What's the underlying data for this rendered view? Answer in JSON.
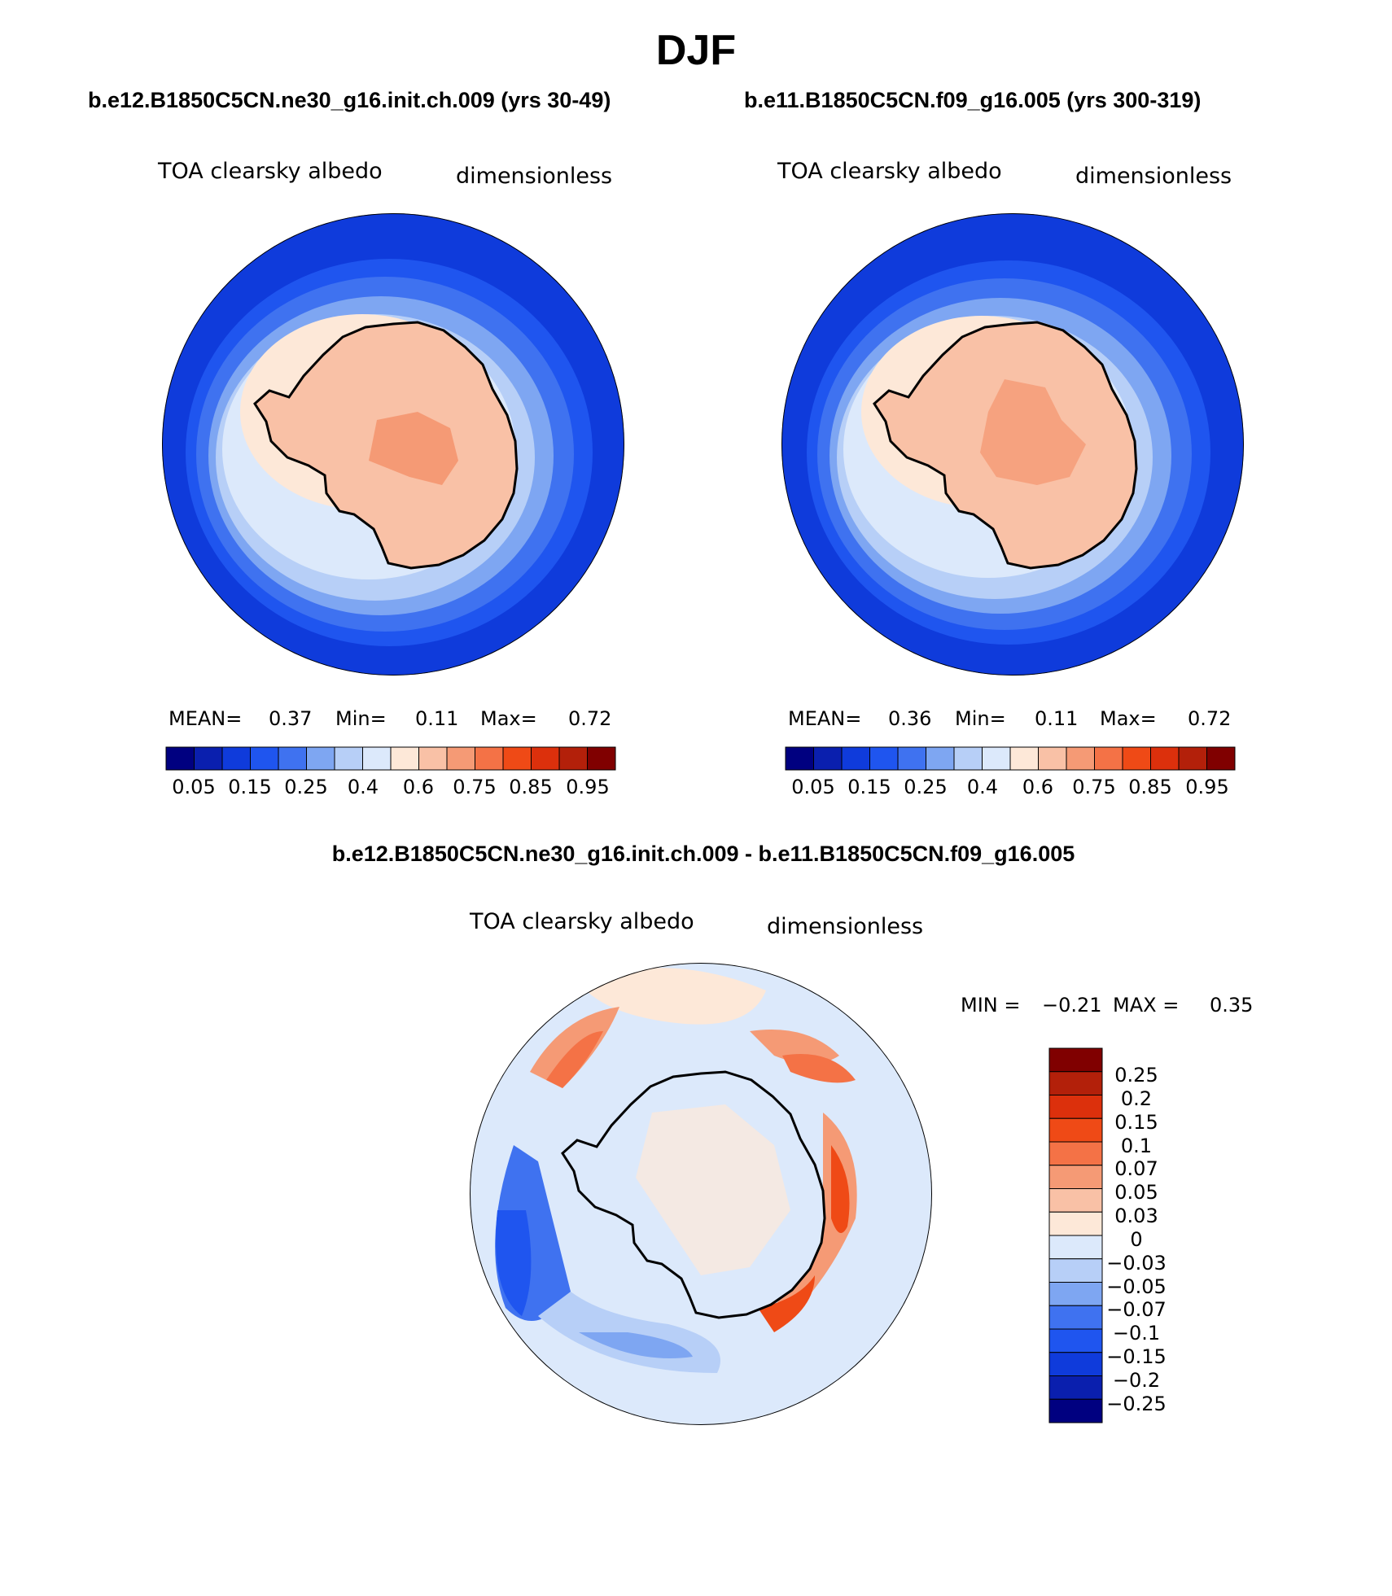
{
  "title": "DJF",
  "panels": [
    {
      "case_title": "b.e12.B1850C5CN.ne30_g16.init.ch.009 (yrs 30-49)",
      "variable": "TOA clearsky albedo",
      "units": "dimensionless",
      "mean_label": "MEAN=",
      "mean_value": "0.37",
      "min_label": "Min=",
      "min_value": "0.11",
      "max_label": "Max=",
      "max_value": "0.72",
      "colorbar_labels": [
        "0.05",
        "0.15",
        "0.25",
        "0.4",
        "0.6",
        "0.75",
        "0.85",
        "0.95"
      ]
    },
    {
      "case_title": "b.e11.B1850C5CN.f09_g16.005 (yrs 300-319)",
      "variable": "TOA clearsky albedo",
      "units": "dimensionless",
      "mean_label": "MEAN=",
      "mean_value": "0.36",
      "min_label": "Min=",
      "min_value": "0.11",
      "max_label": "Max=",
      "max_value": "0.72",
      "colorbar_labels": [
        "0.05",
        "0.15",
        "0.25",
        "0.4",
        "0.6",
        "0.75",
        "0.85",
        "0.95"
      ]
    }
  ],
  "difference": {
    "title": "b.e12.B1850C5CN.ne30_g16.init.ch.009 - b.e11.B1850C5CN.f09_g16.005",
    "variable": "TOA clearsky albedo",
    "units": "dimensionless",
    "min_label": "MIN =",
    "min_value": "−0.21",
    "max_label": "MAX =",
    "max_value": "0.35",
    "colorbar_labels": [
      "0.25",
      "0.2",
      "0.15",
      "0.1",
      "0.07",
      "0.05",
      "0.03",
      "0",
      "−0.03",
      "−0.05",
      "−0.07",
      "−0.1",
      "−0.15",
      "−0.2",
      "−0.25"
    ]
  },
  "colors": {
    "albedo_scale": [
      "#000080",
      "#0a1fae",
      "#0f3bdb",
      "#1f55ef",
      "#3f72f0",
      "#7ea6f2",
      "#b7cff7",
      "#dce9fb",
      "#fde8d8",
      "#f9c1a6",
      "#f59a75",
      "#f47246",
      "#ef4a16",
      "#dc300c",
      "#b3200a",
      "#800000"
    ],
    "diff_scale": [
      "#800000",
      "#b3200a",
      "#dc300c",
      "#ef4a16",
      "#f47246",
      "#f59a75",
      "#f9c1a6",
      "#fde8d8",
      "#dce9fb",
      "#b7cff7",
      "#7ea6f2",
      "#3f72f0",
      "#1f55ef",
      "#0f3bdb",
      "#0a1fae",
      "#000080"
    ],
    "ocean": "#0f3bdb",
    "continent": "#f9c1a6",
    "diff_background": "#dce9fb"
  }
}
